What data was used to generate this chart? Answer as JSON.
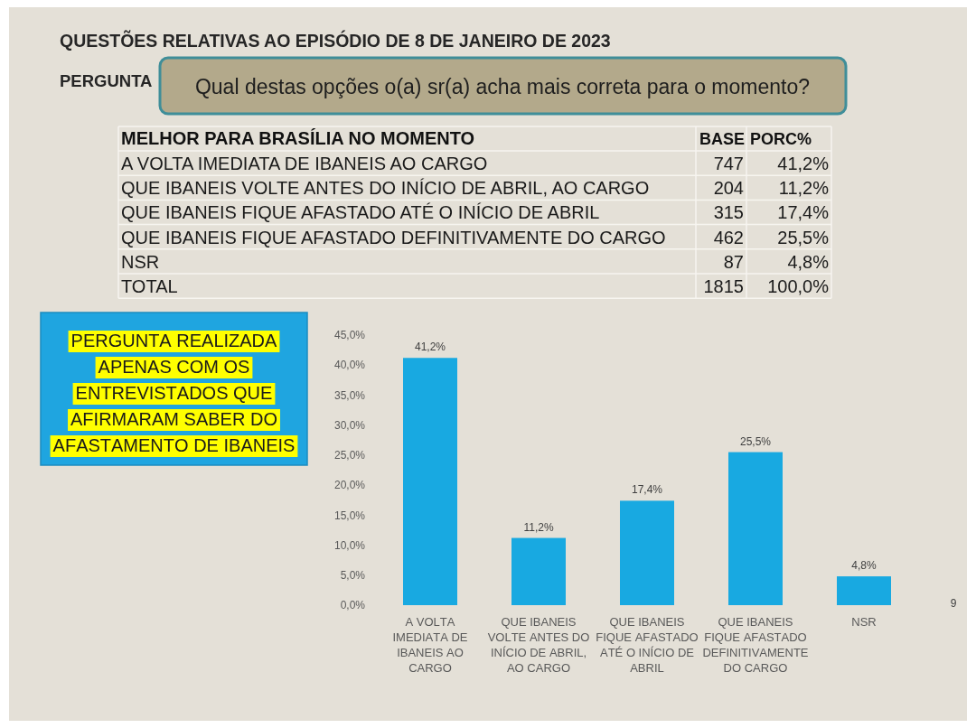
{
  "chart_data": [
    {
      "type": "other",
      "title": "QUESTÕES RELATIVAS AO EPISÓDIO DE 8 DE JANEIRO DE 2023",
      "ylabel": "MELHOR PARA BRASÍLIA NO MOMENTO",
      "annotations": [
        "PERGUNTA",
        "Qual destas opções o(a) sr(a) acha mais correta para o momento?"
      ],
      "categories": [
        "A VOLTA IMEDIATA DE IBANEIS AO CARGO",
        "QUE IBANEIS VOLTE ANTES DO INÍCIO DE ABRIL, AO CARGO",
        "QUE IBANEIS FIQUE AFASTADO ATÉ O INÍCIO DE ABRIL",
        "QUE IBANEIS FIQUE AFASTADO DEFINITIVAMENTE DO CARGO",
        "NSR",
        "TOTAL"
      ],
      "data_labels": true,
      "series": [
        {
          "name": "BASE",
          "values": [
            747,
            204,
            315,
            462,
            87,
            1815
          ]
        },
        {
          "name": "PORC%",
          "values": [
            41.2,
            11.2,
            17.4,
            25.5,
            4.8,
            100
          ],
          "value_labels": [
            "41,2%",
            "11,2%",
            "17,4%",
            "25,5%",
            "4,8%",
            "100,0%"
          ]
        }
      ]
    },
    {
      "type": "bar",
      "categories": [
        "A VOLTA IMEDIATA DE IBANEIS AO CARGO",
        "QUE IBANEIS VOLTE ANTES DO INÍCIO DE ABRIL, AO CARGO",
        "QUE IBANEIS FIQUE AFASTADO ATÉ O INÍCIO DE ABRIL",
        "QUE IBANEIS FIQUE AFASTADO DEFINITIVAMENTE DO CARGO",
        "NSR"
      ],
      "values": [
        41.2,
        11.2,
        17.4,
        25.5,
        4.8
      ],
      "value_labels": [
        "41,2%",
        "11,2%",
        "17,4%",
        "25,5%",
        "4,8%"
      ],
      "color": "#18a9e1",
      "ylim": [
        0,
        45
      ],
      "yticks": [
        {
          "value": 0,
          "label": "0,0%"
        },
        {
          "value": 5,
          "label": "5,0%"
        },
        {
          "value": 10,
          "label": "10,0%"
        },
        {
          "value": 15,
          "label": "15,0%"
        },
        {
          "value": 20,
          "label": "20,0%"
        },
        {
          "value": 25,
          "label": "25,0%"
        },
        {
          "value": 30,
          "label": "30,0%"
        },
        {
          "value": 35,
          "label": "35,0%"
        },
        {
          "value": 40,
          "label": "40,0%"
        },
        {
          "value": 45,
          "label": "45,0%"
        }
      ],
      "annotations": [
        "PERGUNTA REALIZADA APENAS COM OS ENTREVISTADOS QUE AFIRMARAM SABER DO AFASTAMENTO DE IBANEIS",
        "9"
      ]
    }
  ]
}
